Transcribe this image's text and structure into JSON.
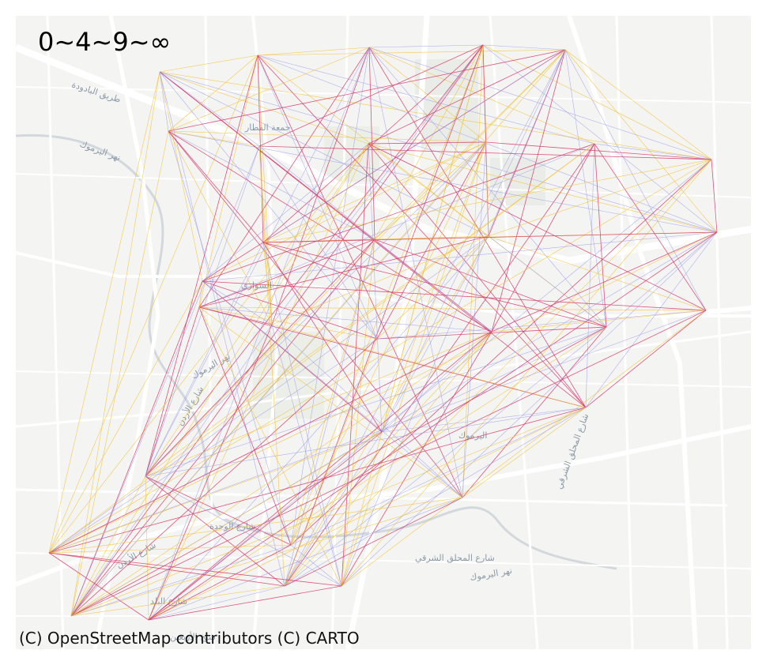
{
  "title": "0~4~9~∞",
  "attribution": "(C) OpenStreetMap contributors (C) CARTO",
  "street_labels": [
    "طريق البادودة",
    "نهر اليرموك",
    "جمعة القطار",
    "السواري",
    "شارع الأردن",
    "نهر اليرموك",
    "شارع الوحدة",
    "اليرموك",
    "شارع المحلق الشرقي",
    "شارع المحلق الشرقي",
    "نهر اليرموك",
    "شارع الأردن",
    "شارع البلد",
    "شيخ الأربعين"
  ],
  "colors": {
    "map_background": "#f4f4f3",
    "roads": "#ffffff",
    "river": "#cfd6db",
    "edge_low": "#9a9ae8",
    "edge_mid": "#f2c230",
    "edge_high": "#d63a6a"
  },
  "flow_classes": [
    "0~4",
    "4~9",
    "9~∞"
  ]
}
